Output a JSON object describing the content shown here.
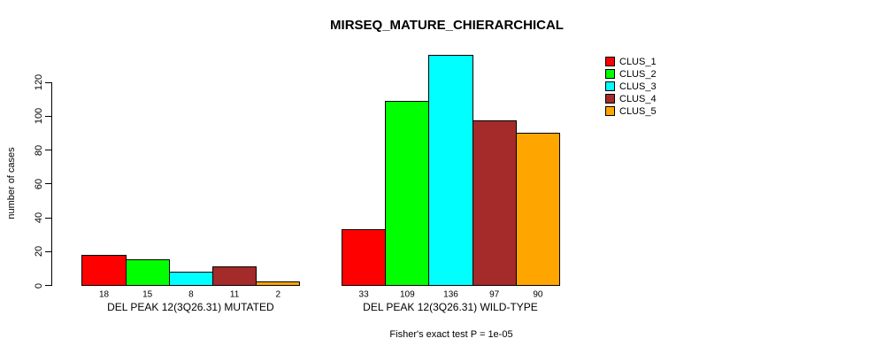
{
  "chart_data": {
    "type": "bar",
    "title": "MIRSEQ_MATURE_CHIERARCHICAL",
    "ylabel": "number of cases",
    "xlabel": "",
    "footnote": "Fisher's exact test P = 1e-05",
    "categories": [
      "DEL PEAK 12(3Q26.31) MUTATED",
      "DEL PEAK 12(3Q26.31) WILD-TYPE"
    ],
    "series": [
      {
        "name": "CLUS_1",
        "color": "#FF0000",
        "values": [
          18,
          33
        ]
      },
      {
        "name": "CLUS_2",
        "color": "#00FF00",
        "values": [
          15,
          109
        ]
      },
      {
        "name": "CLUS_3",
        "color": "#00FFFF",
        "values": [
          8,
          136
        ]
      },
      {
        "name": "CLUS_4",
        "color": "#A52A2A",
        "values": [
          11,
          97
        ]
      },
      {
        "name": "CLUS_5",
        "color": "#FFA500",
        "values": [
          2,
          90
        ]
      }
    ],
    "yticks": [
      0,
      20,
      40,
      60,
      80,
      100,
      120
    ],
    "ylim": [
      0,
      140
    ],
    "grid": false,
    "value_labels_under_bars": true,
    "legend_position": "top-right",
    "bar_border_color": "#000000",
    "background_color": "#FFFFFF"
  }
}
